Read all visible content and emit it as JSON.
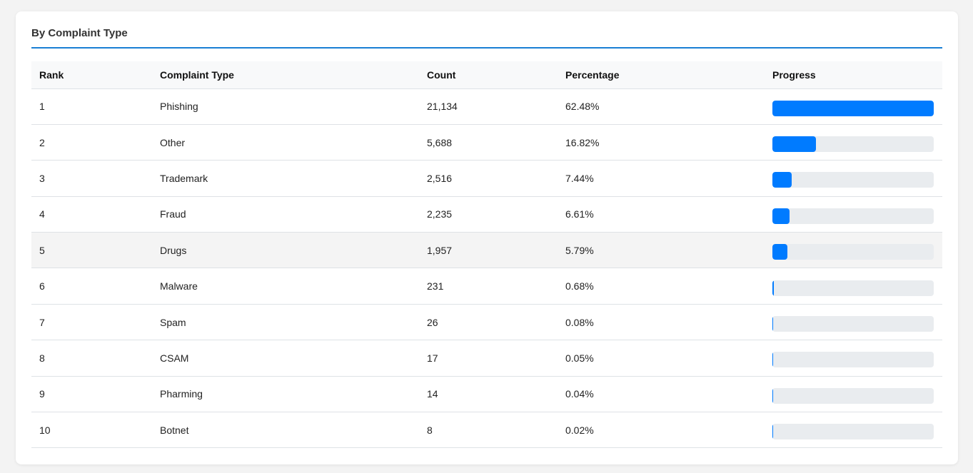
{
  "card": {
    "title": "By Complaint Type"
  },
  "table": {
    "headers": {
      "rank": "Rank",
      "type": "Complaint Type",
      "count": "Count",
      "percentage": "Percentage",
      "progress": "Progress"
    },
    "rows": [
      {
        "rank": "1",
        "type": "Phishing",
        "count": "21,134",
        "percentage": "62.48%",
        "progress": 1.0
      },
      {
        "rank": "2",
        "type": "Other",
        "count": "5,688",
        "percentage": "16.82%",
        "progress": 0.2692
      },
      {
        "rank": "3",
        "type": "Trademark",
        "count": "2,516",
        "percentage": "7.44%",
        "progress": 0.1191
      },
      {
        "rank": "4",
        "type": "Fraud",
        "count": "2,235",
        "percentage": "6.61%",
        "progress": 0.1058
      },
      {
        "rank": "5",
        "type": "Drugs",
        "count": "1,957",
        "percentage": "5.79%",
        "progress": 0.0926
      },
      {
        "rank": "6",
        "type": "Malware",
        "count": "231",
        "percentage": "0.68%",
        "progress": 0.0109
      },
      {
        "rank": "7",
        "type": "Spam",
        "count": "26",
        "percentage": "0.08%",
        "progress": 0.0013
      },
      {
        "rank": "8",
        "type": "CSAM",
        "count": "17",
        "percentage": "0.05%",
        "progress": 0.0008
      },
      {
        "rank": "9",
        "type": "Pharming",
        "count": "14",
        "percentage": "0.04%",
        "progress": 0.0007
      },
      {
        "rank": "10",
        "type": "Botnet",
        "count": "8",
        "percentage": "0.02%",
        "progress": 0.0004
      }
    ],
    "highlighted_row_index": 4
  },
  "colors": {
    "accent": "#1a7fd4",
    "progress_fill": "#007bff",
    "progress_track": "#e9ecef"
  }
}
